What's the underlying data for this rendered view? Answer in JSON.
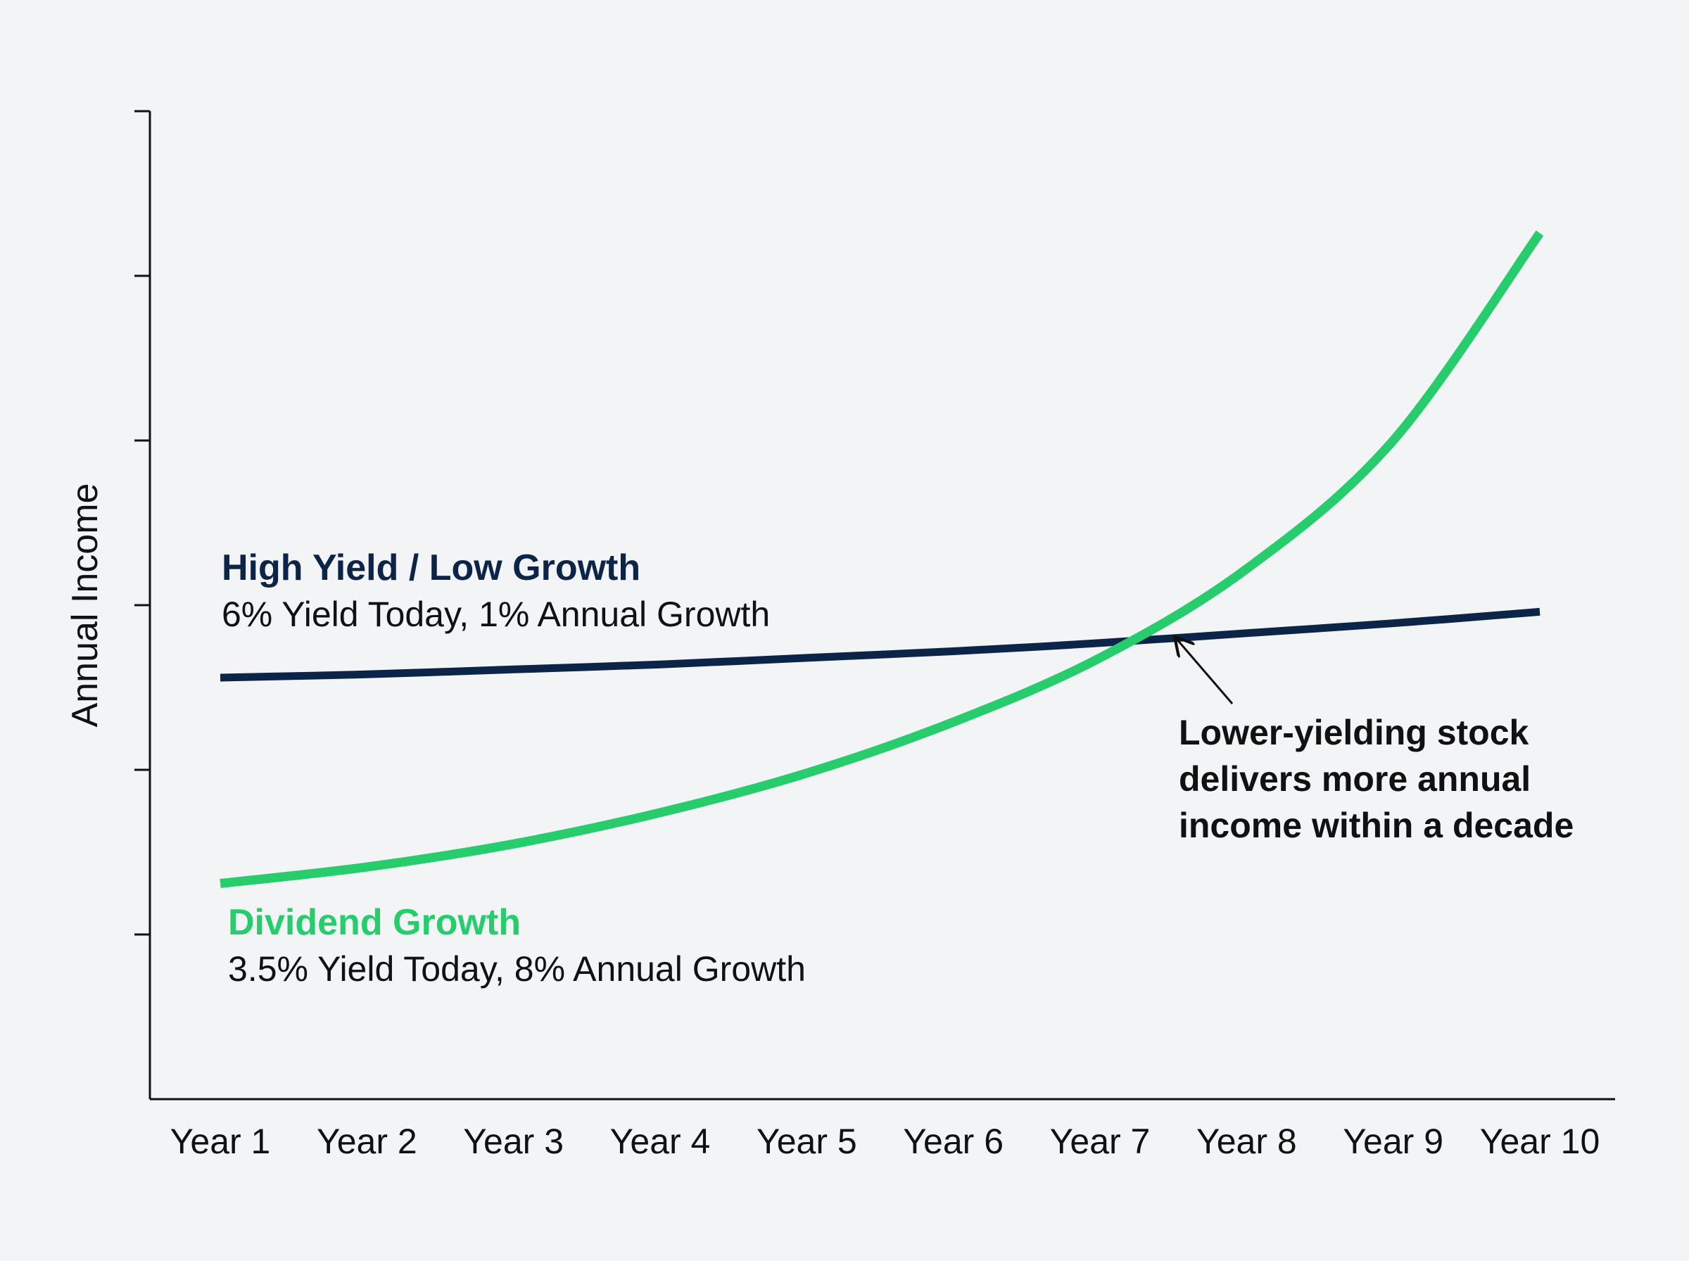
{
  "chart_data": {
    "type": "line",
    "title": "",
    "xlabel": "",
    "ylabel": "Annual Income",
    "categories": [
      "Year 1",
      "Year 2",
      "Year 3",
      "Year 4",
      "Year 5",
      "Year 6",
      "Year 7",
      "Year 8",
      "Year 9",
      "Year 10"
    ],
    "x": [
      1,
      10
    ],
    "ylim": [
      0,
      6
    ],
    "y_ticks": [
      0,
      1,
      2,
      3,
      4,
      5,
      6
    ],
    "y_tick_labels_shown": false,
    "grid": false,
    "legend": "inline labels",
    "series": [
      {
        "name": "High Yield / Low Growth",
        "description": "6% Yield Today, 1% Annual Growth",
        "color": "#0b2447",
        "values": [
          2.56,
          2.58,
          2.61,
          2.64,
          2.68,
          2.72,
          2.77,
          2.83,
          2.89,
          2.96
        ]
      },
      {
        "name": "Dividend Growth",
        "description": "3.5% Yield Today, 8% Annual Growth",
        "color": "#27cc6d",
        "values": [
          1.31,
          1.41,
          1.55,
          1.74,
          1.98,
          2.29,
          2.68,
          3.22,
          4.0,
          5.26
        ]
      }
    ],
    "annotations": [
      {
        "lines": [
          "Lower-yielding stock",
          "delivers more annual",
          "income within a decade"
        ],
        "points_to": {
          "x": 7.4,
          "y": 2.8
        }
      }
    ]
  }
}
